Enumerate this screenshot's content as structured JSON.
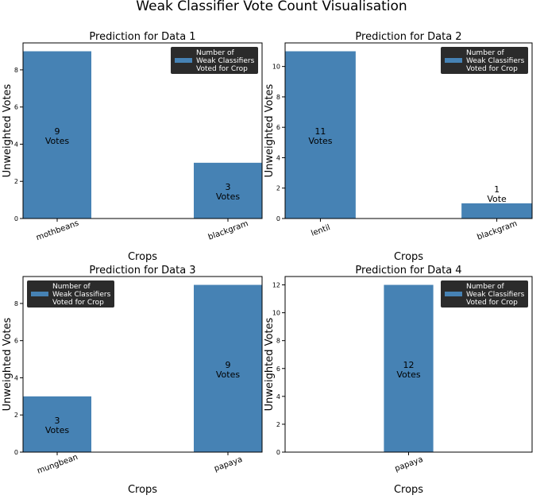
{
  "figure_title": "Weak Classifier Vote Count Visualisation",
  "colors": {
    "bar": "#4682b4",
    "legend_bg": "#2b2b2b",
    "axis": "#000000"
  },
  "chart_data": [
    {
      "type": "bar",
      "title": "Prediction for Data 1",
      "xlabel": "Crops",
      "ylabel": "Unweighted Votes",
      "categories": [
        "mothbeans",
        "blackgram"
      ],
      "values": [
        9,
        3
      ],
      "value_labels": [
        [
          "9",
          "Votes"
        ],
        [
          "3",
          "Votes"
        ]
      ],
      "ylim": [
        0,
        9.45
      ],
      "yticks": [
        0,
        2,
        4,
        6,
        8
      ],
      "legend": [
        "Number of",
        "Weak Classifiers",
        "Voted for Crop"
      ],
      "legend_position": "top-right"
    },
    {
      "type": "bar",
      "title": "Prediction for Data 2",
      "xlabel": "Crops",
      "ylabel": "Unweighted Votes",
      "categories": [
        "lentil",
        "blackgram"
      ],
      "values": [
        11,
        1
      ],
      "value_labels": [
        [
          "11",
          "Votes"
        ],
        [
          "1",
          "Vote"
        ]
      ],
      "ylim": [
        0,
        11.55
      ],
      "yticks": [
        0,
        2,
        4,
        6,
        8,
        10
      ],
      "legend": [
        "Number of",
        "Weak Classifiers",
        "Voted for Crop"
      ],
      "legend_position": "top-right"
    },
    {
      "type": "bar",
      "title": "Prediction for Data 3",
      "xlabel": "Crops",
      "ylabel": "Unweighted Votes",
      "categories": [
        "mungbean",
        "papaya"
      ],
      "values": [
        3,
        9
      ],
      "value_labels": [
        [
          "3",
          "Votes"
        ],
        [
          "9",
          "Votes"
        ]
      ],
      "ylim": [
        0,
        9.45
      ],
      "yticks": [
        0,
        2,
        4,
        6,
        8
      ],
      "legend": [
        "Number of",
        "Weak Classifiers",
        "Voted for Crop"
      ],
      "legend_position": "top-left"
    },
    {
      "type": "bar",
      "title": "Prediction for Data 4",
      "xlabel": "Crops",
      "ylabel": "Unweighted Votes",
      "categories": [
        "papaya"
      ],
      "values": [
        12
      ],
      "value_labels": [
        [
          "12",
          "Votes"
        ]
      ],
      "ylim": [
        0,
        12.6
      ],
      "yticks": [
        0,
        2,
        4,
        6,
        8,
        10,
        12
      ],
      "legend": [
        "Number of",
        "Weak Classifiers",
        "Voted for Crop"
      ],
      "legend_position": "top-right"
    }
  ]
}
